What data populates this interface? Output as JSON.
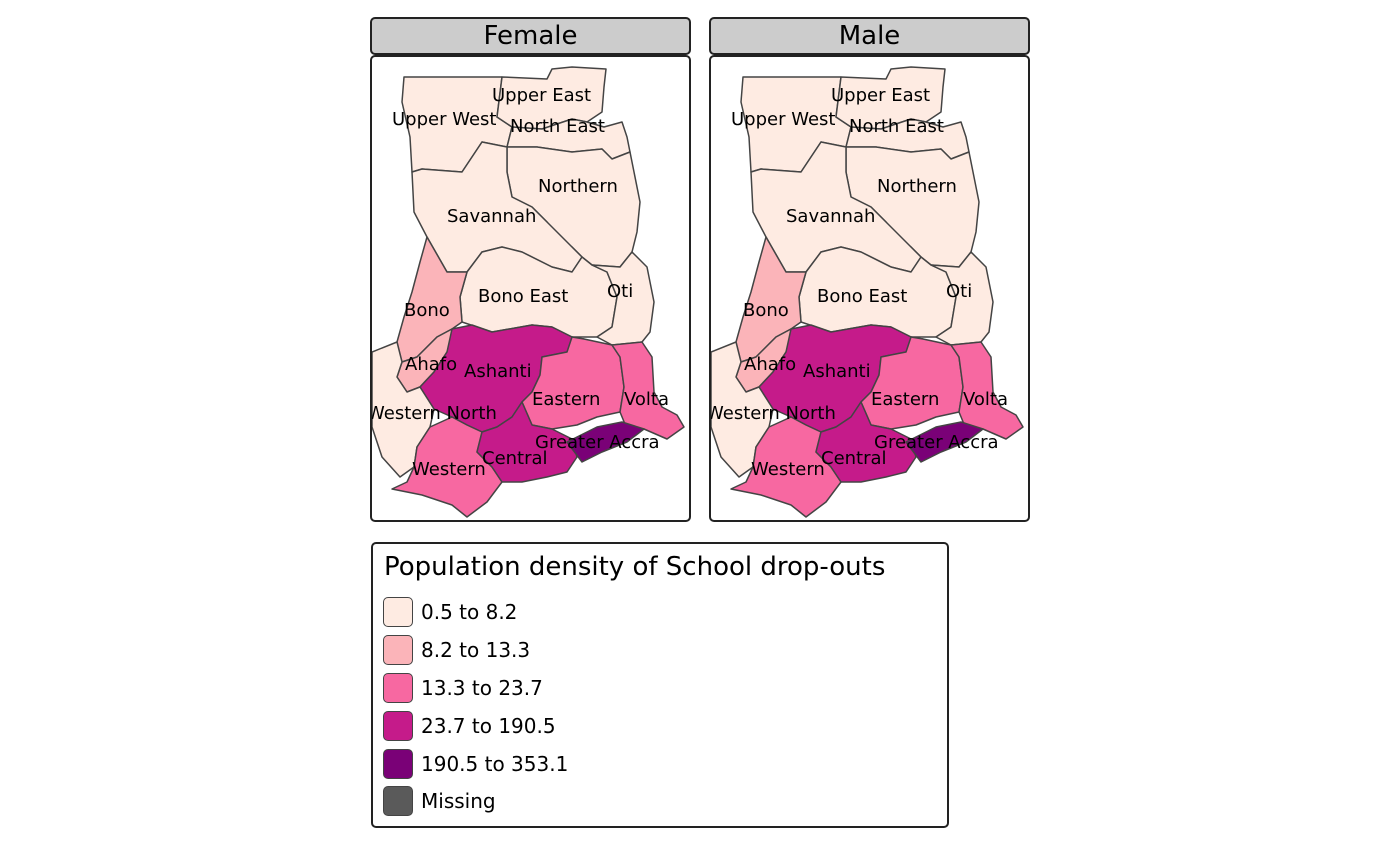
{
  "panels": [
    {
      "title": "Female",
      "regions": [
        {
          "name": "Upper West",
          "class": 0
        },
        {
          "name": "Upper East",
          "class": 0
        },
        {
          "name": "North East",
          "class": 0
        },
        {
          "name": "Northern",
          "class": 0
        },
        {
          "name": "Savannah",
          "class": 0
        },
        {
          "name": "Bono East",
          "class": 0
        },
        {
          "name": "Oti",
          "class": 0
        },
        {
          "name": "Bono",
          "class": 1
        },
        {
          "name": "Ahafo",
          "class": 1
        },
        {
          "name": "Ashanti",
          "class": 3
        },
        {
          "name": "Eastern",
          "class": 2
        },
        {
          "name": "Volta",
          "class": 2
        },
        {
          "name": "Western North",
          "class": 0
        },
        {
          "name": "Western",
          "class": 2
        },
        {
          "name": "Central",
          "class": 3
        },
        {
          "name": "Greater Accra",
          "class": 4
        }
      ]
    },
    {
      "title": "Male",
      "regions": [
        {
          "name": "Upper West",
          "class": 0
        },
        {
          "name": "Upper East",
          "class": 0
        },
        {
          "name": "North East",
          "class": 0
        },
        {
          "name": "Northern",
          "class": 0
        },
        {
          "name": "Savannah",
          "class": 0
        },
        {
          "name": "Bono East",
          "class": 0
        },
        {
          "name": "Oti",
          "class": 0
        },
        {
          "name": "Bono",
          "class": 1
        },
        {
          "name": "Ahafo",
          "class": 1
        },
        {
          "name": "Ashanti",
          "class": 3
        },
        {
          "name": "Eastern",
          "class": 2
        },
        {
          "name": "Volta",
          "class": 2
        },
        {
          "name": "Western North",
          "class": 0
        },
        {
          "name": "Western",
          "class": 2
        },
        {
          "name": "Central",
          "class": 3
        },
        {
          "name": "Greater Accra",
          "class": 4
        }
      ]
    }
  ],
  "legend": {
    "title": "Population density of School drop-outs",
    "items": [
      {
        "label": "0.5 to 8.2",
        "color": "#FEEBE2"
      },
      {
        "label": "8.2 to 13.3",
        "color": "#FBB4B9"
      },
      {
        "label": "13.3 to 23.7",
        "color": "#F768A1"
      },
      {
        "label": "23.7 to 190.5",
        "color": "#C51B8A"
      },
      {
        "label": "190.5 to 353.1",
        "color": "#7A0177"
      },
      {
        "label": "Missing",
        "color": "#5A5A5A"
      }
    ]
  }
}
